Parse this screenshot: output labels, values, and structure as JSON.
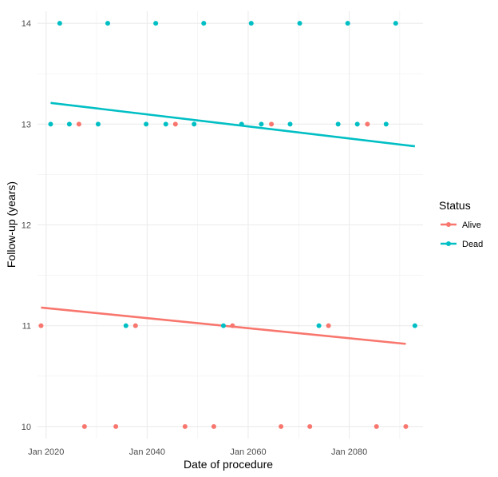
{
  "chart_data": {
    "type": "scatter",
    "xlabel": "Date of procedure",
    "ylabel": "Follow-up (years)",
    "x_ticks": [
      "Jan 2020",
      "Jan 2040",
      "Jan 2060",
      "Jan 2080"
    ],
    "x_tick_years": [
      2020,
      2040,
      2060,
      2080
    ],
    "xlim": [
      2018.3,
      2094.6
    ],
    "ylim": [
      9.88,
      14.12
    ],
    "y_ticks": [
      10,
      11,
      12,
      13,
      14
    ],
    "grid": true,
    "legend": {
      "title": "Status",
      "position": "right"
    },
    "series": [
      {
        "name": "Alive",
        "color": "#F8766D",
        "points": [
          [
            2019.0,
            11
          ],
          [
            2027.6,
            10
          ],
          [
            2026.5,
            13
          ],
          [
            2033.8,
            10
          ],
          [
            2037.7,
            11
          ],
          [
            2045.6,
            13
          ],
          [
            2047.5,
            10
          ],
          [
            2053.2,
            10
          ],
          [
            2056.9,
            11
          ],
          [
            2064.6,
            13
          ],
          [
            2066.5,
            10
          ],
          [
            2072.2,
            10
          ],
          [
            2075.9,
            11
          ],
          [
            2083.6,
            13
          ],
          [
            2085.4,
            10
          ],
          [
            2091.2,
            10
          ]
        ],
        "trend": [
          [
            2019.0,
            11.18
          ],
          [
            2091.2,
            10.82
          ]
        ]
      },
      {
        "name": "Dead",
        "color": "#00BFC4",
        "points": [
          [
            2020.9,
            13
          ],
          [
            2022.7,
            14
          ],
          [
            2024.6,
            13
          ],
          [
            2030.3,
            13
          ],
          [
            2032.2,
            14
          ],
          [
            2035.8,
            11
          ],
          [
            2039.8,
            13
          ],
          [
            2041.7,
            14
          ],
          [
            2043.7,
            13
          ],
          [
            2049.3,
            13
          ],
          [
            2051.2,
            14
          ],
          [
            2055.1,
            11
          ],
          [
            2058.7,
            13
          ],
          [
            2060.6,
            14
          ],
          [
            2062.6,
            13
          ],
          [
            2068.3,
            13
          ],
          [
            2070.2,
            14
          ],
          [
            2074.0,
            11
          ],
          [
            2077.8,
            13
          ],
          [
            2079.7,
            14
          ],
          [
            2081.6,
            13
          ],
          [
            2087.3,
            13
          ],
          [
            2089.2,
            14
          ],
          [
            2093.0,
            11
          ]
        ],
        "trend": [
          [
            2020.9,
            13.21
          ],
          [
            2093.0,
            12.78
          ]
        ]
      }
    ]
  }
}
